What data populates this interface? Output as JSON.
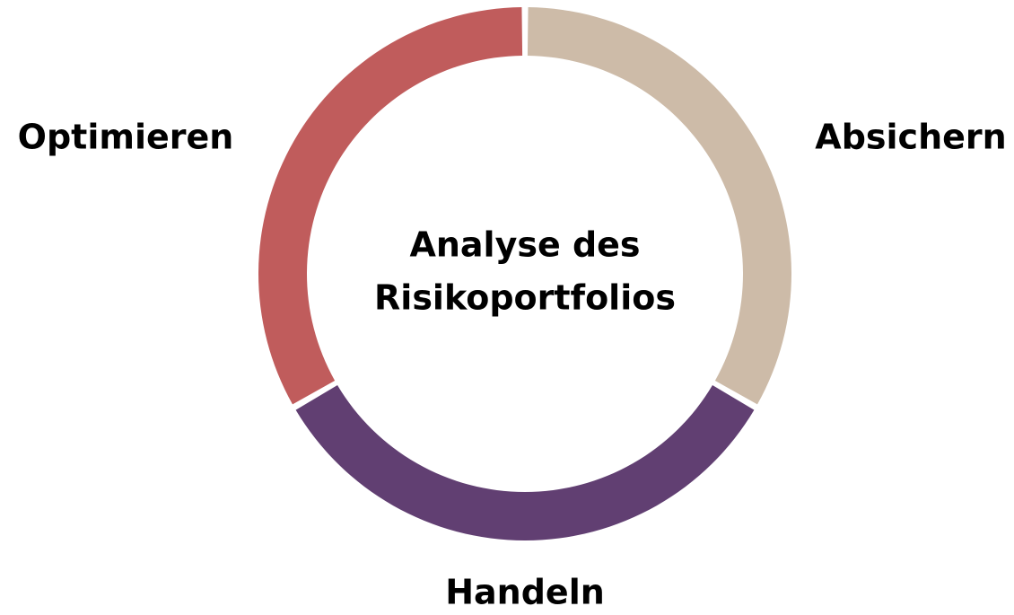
{
  "center": {
    "lines": [
      "Analyse des",
      "Risikoportfolios"
    ]
  },
  "segments": [
    {
      "label": "Absichern",
      "color": "#cdbba8"
    },
    {
      "label": "Handeln",
      "color": "#613f72"
    },
    {
      "label": "Optimieren",
      "color": "#c05c5c"
    }
  ]
}
